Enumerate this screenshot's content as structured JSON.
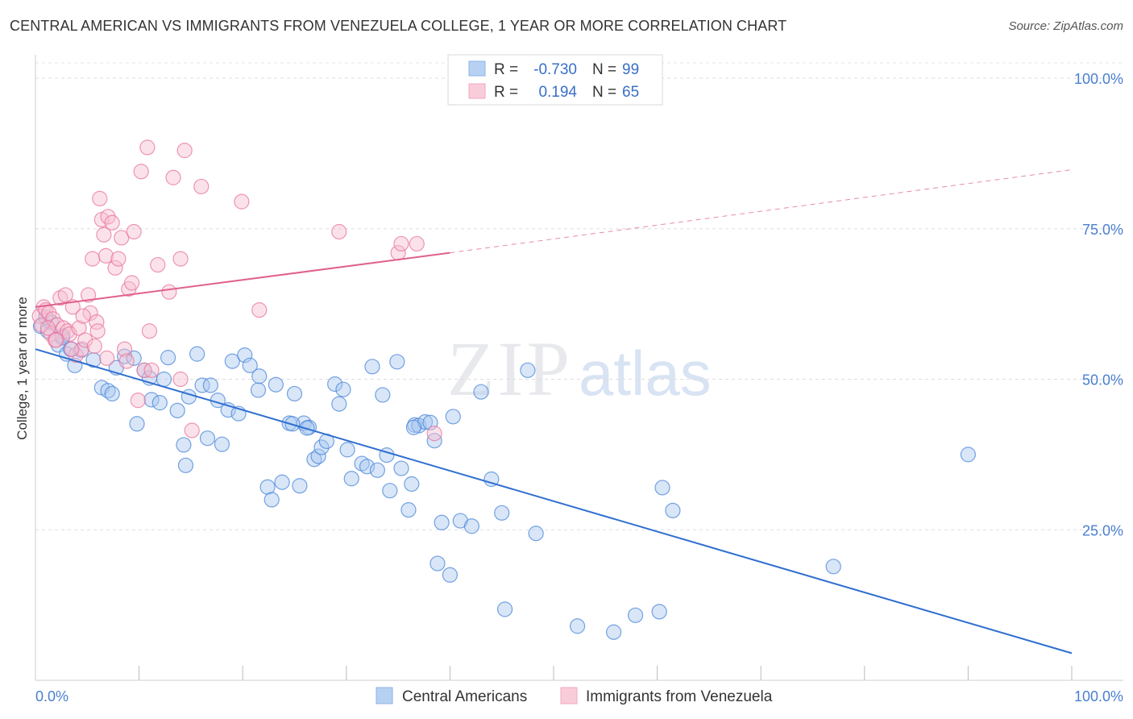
{
  "title": "CENTRAL AMERICAN VS IMMIGRANTS FROM VENEZUELA COLLEGE, 1 YEAR OR MORE CORRELATION CHART",
  "source": "Source: ZipAtlas.com",
  "watermark": {
    "zip": "ZIP",
    "atlas": "atlas"
  },
  "legend_top": [
    {
      "r_label": "R =",
      "r_value": "-0.730",
      "n_label": "N =",
      "n_value": "99",
      "color": "#8cb4e8"
    },
    {
      "r_label": "R =",
      "r_value": "0.194",
      "n_label": "N =",
      "n_value": "65",
      "color": "#f2a7bf"
    }
  ],
  "legend_bottom": [
    {
      "name": "Central Americans",
      "color": "#8cb4e8"
    },
    {
      "name": "Immigrants from Venezuela",
      "color": "#f2a7bf"
    }
  ],
  "chart_data": {
    "type": "scatter",
    "xlabel": "",
    "ylabel": "College, 1 year or more",
    "xlim": [
      0,
      100
    ],
    "ylim": [
      0,
      100
    ],
    "x_tick_labels": [
      "0.0%",
      "100.0%"
    ],
    "y_tick_labels": [
      "100.0%",
      "75.0%",
      "50.0%",
      "25.0%"
    ],
    "y_ticks": [
      100,
      75,
      50,
      25
    ],
    "grid": true,
    "series": [
      {
        "name": "Central Americans",
        "color": "#4a86d8",
        "fill": "#a9c8f0",
        "trend": {
          "x0": 0,
          "y0": 55.0,
          "x1": 100,
          "y1": 4.5
        },
        "points": [
          [
            0.5,
            58.8
          ],
          [
            1.2,
            58.0
          ],
          [
            1.5,
            59.5
          ],
          [
            2.2,
            55.7
          ],
          [
            2.6,
            57.2
          ],
          [
            3.0,
            54.2
          ],
          [
            3.8,
            52.3
          ],
          [
            4.4,
            54.8
          ],
          [
            5.6,
            53.2
          ],
          [
            6.4,
            48.6
          ],
          [
            7.0,
            48.1
          ],
          [
            7.4,
            47.6
          ],
          [
            7.8,
            51.9
          ],
          [
            8.6,
            53.8
          ],
          [
            9.5,
            53.5
          ],
          [
            9.8,
            42.6
          ],
          [
            10.5,
            51.5
          ],
          [
            11.0,
            50.2
          ],
          [
            11.2,
            46.6
          ],
          [
            12.0,
            46.1
          ],
          [
            12.4,
            50.0
          ],
          [
            12.8,
            53.6
          ],
          [
            13.7,
            44.8
          ],
          [
            14.3,
            39.1
          ],
          [
            14.5,
            35.7
          ],
          [
            14.8,
            47.1
          ],
          [
            15.6,
            54.2
          ],
          [
            16.1,
            49.0
          ],
          [
            16.6,
            40.2
          ],
          [
            16.9,
            49.0
          ],
          [
            17.6,
            46.5
          ],
          [
            18.0,
            39.2
          ],
          [
            18.6,
            44.9
          ],
          [
            19.0,
            53.0
          ],
          [
            19.6,
            44.3
          ],
          [
            20.2,
            54.0
          ],
          [
            20.7,
            52.3
          ],
          [
            21.5,
            48.2
          ],
          [
            21.6,
            50.5
          ],
          [
            22.4,
            32.1
          ],
          [
            22.8,
            30.0
          ],
          [
            23.2,
            49.1
          ],
          [
            23.8,
            32.9
          ],
          [
            24.5,
            42.7
          ],
          [
            25.0,
            47.6
          ],
          [
            25.5,
            32.3
          ],
          [
            25.9,
            42.7
          ],
          [
            26.4,
            42.0
          ],
          [
            26.9,
            36.7
          ],
          [
            27.3,
            37.2
          ],
          [
            27.6,
            38.7
          ],
          [
            28.1,
            39.7
          ],
          [
            28.9,
            49.2
          ],
          [
            29.3,
            45.9
          ],
          [
            29.7,
            48.3
          ],
          [
            30.1,
            38.3
          ],
          [
            30.5,
            33.5
          ],
          [
            31.5,
            36.0
          ],
          [
            32.0,
            35.5
          ],
          [
            32.5,
            52.1
          ],
          [
            33.0,
            34.9
          ],
          [
            33.5,
            47.4
          ],
          [
            33.9,
            37.4
          ],
          [
            34.2,
            31.5
          ],
          [
            34.9,
            52.9
          ],
          [
            35.3,
            35.2
          ],
          [
            36.0,
            28.3
          ],
          [
            36.3,
            32.6
          ],
          [
            36.6,
            42.4
          ],
          [
            37.0,
            42.3
          ],
          [
            37.6,
            42.9
          ],
          [
            38.1,
            42.8
          ],
          [
            38.5,
            39.8
          ],
          [
            38.8,
            19.4
          ],
          [
            39.2,
            26.2
          ],
          [
            40.0,
            17.5
          ],
          [
            40.3,
            43.8
          ],
          [
            41.0,
            26.5
          ],
          [
            42.1,
            25.6
          ],
          [
            43.0,
            47.9
          ],
          [
            44.0,
            33.4
          ],
          [
            45.0,
            27.8
          ],
          [
            45.3,
            11.8
          ],
          [
            47.5,
            51.5
          ],
          [
            48.3,
            24.4
          ],
          [
            52.3,
            9.0
          ],
          [
            55.8,
            8.0
          ],
          [
            57.9,
            10.8
          ],
          [
            60.2,
            11.4
          ],
          [
            60.5,
            32.0
          ],
          [
            61.5,
            28.2
          ],
          [
            77.0,
            18.9
          ],
          [
            90.0,
            37.5
          ],
          [
            1.0,
            60.3
          ],
          [
            2.6,
            56.9
          ],
          [
            3.4,
            55.0
          ],
          [
            36.5,
            42.0
          ],
          [
            24.8,
            42.6
          ],
          [
            26.2,
            41.9
          ]
        ]
      },
      {
        "name": "Immigrants from Venezuela",
        "color": "#e8749c",
        "fill": "#f6bfd1",
        "trend": {
          "x0": 0,
          "y0": 62.0,
          "x1": 40,
          "y1": 71.0,
          "x2": 100,
          "y2": 84.8
        },
        "points": [
          [
            0.4,
            60.5
          ],
          [
            0.6,
            59.0
          ],
          [
            0.8,
            62.0
          ],
          [
            1.0,
            61.5
          ],
          [
            1.3,
            61.0
          ],
          [
            1.5,
            57.5
          ],
          [
            1.7,
            60.0
          ],
          [
            1.9,
            56.5
          ],
          [
            2.1,
            59.0
          ],
          [
            2.4,
            63.5
          ],
          [
            2.7,
            58.5
          ],
          [
            2.9,
            64.0
          ],
          [
            3.1,
            58.0
          ],
          [
            3.3,
            57.5
          ],
          [
            3.6,
            62.0
          ],
          [
            3.9,
            54.0
          ],
          [
            4.2,
            58.5
          ],
          [
            4.5,
            55.0
          ],
          [
            4.8,
            56.5
          ],
          [
            5.1,
            64.0
          ],
          [
            5.3,
            61.0
          ],
          [
            5.5,
            70.0
          ],
          [
            5.7,
            55.5
          ],
          [
            5.9,
            59.5
          ],
          [
            6.0,
            58.0
          ],
          [
            6.2,
            80.0
          ],
          [
            6.4,
            76.5
          ],
          [
            6.6,
            74.0
          ],
          [
            6.8,
            70.5
          ],
          [
            7.0,
            77.0
          ],
          [
            7.4,
            76.0
          ],
          [
            7.7,
            68.5
          ],
          [
            8.0,
            70.0
          ],
          [
            8.3,
            73.5
          ],
          [
            8.6,
            55.0
          ],
          [
            8.8,
            53.0
          ],
          [
            9.0,
            65.0
          ],
          [
            9.3,
            66.0
          ],
          [
            9.5,
            74.5
          ],
          [
            9.9,
            46.5
          ],
          [
            10.2,
            84.5
          ],
          [
            10.5,
            51.5
          ],
          [
            10.8,
            88.5
          ],
          [
            11.0,
            58.0
          ],
          [
            11.2,
            51.5
          ],
          [
            11.8,
            69.0
          ],
          [
            12.9,
            64.5
          ],
          [
            13.3,
            83.5
          ],
          [
            14.0,
            70.0
          ],
          [
            14.4,
            88.0
          ],
          [
            15.1,
            41.5
          ],
          [
            16.0,
            82.0
          ],
          [
            19.9,
            79.5
          ],
          [
            21.6,
            61.5
          ],
          [
            29.3,
            74.5
          ],
          [
            35.0,
            71.0
          ],
          [
            35.3,
            72.5
          ],
          [
            36.8,
            72.5
          ],
          [
            38.5,
            41.0
          ],
          [
            14.0,
            50.0
          ],
          [
            2.0,
            56.5
          ],
          [
            4.6,
            60.5
          ],
          [
            6.9,
            53.5
          ],
          [
            3.5,
            55.0
          ],
          [
            1.2,
            58.5
          ]
        ]
      }
    ]
  }
}
